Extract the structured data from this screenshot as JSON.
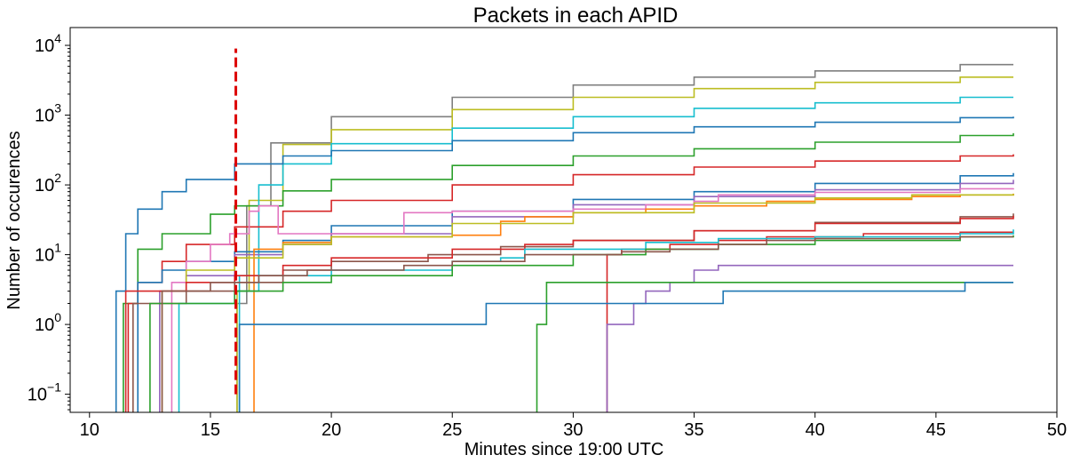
{
  "chart_data": {
    "type": "line",
    "title": "Packets in each APID",
    "xlabel": "Minutes since 19:00 UTC",
    "ylabel": "Number of occurences",
    "xlim": [
      9.2,
      50
    ],
    "ylim": [
      0.055,
      18000
    ],
    "yscale": "log",
    "grid": false,
    "legend": "none",
    "x_ticks": [
      10,
      15,
      20,
      25,
      30,
      35,
      40,
      45,
      50
    ],
    "x_tick_labels": [
      "10",
      "15",
      "20",
      "25",
      "30",
      "35",
      "40",
      "45",
      "50"
    ],
    "y_ticks": [
      {
        "value": 0.1,
        "base": "10",
        "exp": "−1"
      },
      {
        "value": 1,
        "base": "10",
        "exp": "0"
      },
      {
        "value": 10,
        "base": "10",
        "exp": "1"
      },
      {
        "value": 100,
        "base": "10",
        "exp": "2"
      },
      {
        "value": 1000,
        "base": "10",
        "exp": "3"
      },
      {
        "value": 10000,
        "base": "10",
        "exp": "4"
      }
    ],
    "vline": {
      "x": 16.05,
      "y": [
        0.1,
        9000
      ],
      "color": "#dd0000",
      "style": "dashed"
    },
    "series": [
      {
        "color": "#7f7f7f",
        "points": [
          [
            16.0,
            0.01
          ],
          [
            16.1,
            2
          ],
          [
            16.5,
            50
          ],
          [
            17.5,
            400
          ],
          [
            20,
            950
          ],
          [
            25,
            1800
          ],
          [
            30,
            2700
          ],
          [
            35,
            3500
          ],
          [
            40,
            4300
          ],
          [
            46,
            5300
          ],
          [
            48.2,
            5300
          ]
        ]
      },
      {
        "color": "#bcbd22",
        "points": [
          [
            16.0,
            0.01
          ],
          [
            16.1,
            3
          ],
          [
            16.6,
            60
          ],
          [
            18,
            380
          ],
          [
            20,
            620
          ],
          [
            25,
            1200
          ],
          [
            30,
            1800
          ],
          [
            35,
            2400
          ],
          [
            40,
            2950
          ],
          [
            46,
            3500
          ],
          [
            48.2,
            3500
          ]
        ]
      },
      {
        "color": "#17becf",
        "points": [
          [
            16.0,
            0.01
          ],
          [
            16.2,
            5
          ],
          [
            17,
            100
          ],
          [
            18,
            200
          ],
          [
            20,
            390
          ],
          [
            25,
            650
          ],
          [
            30,
            950
          ],
          [
            35,
            1250
          ],
          [
            40,
            1500
          ],
          [
            46,
            1800
          ],
          [
            48.2,
            1800
          ]
        ]
      },
      {
        "color": "#1f77b4",
        "points": [
          [
            11.0,
            0.01
          ],
          [
            11.1,
            3
          ],
          [
            11.5,
            20
          ],
          [
            12,
            45
          ],
          [
            13,
            80
          ],
          [
            14,
            120
          ],
          [
            16,
            200
          ],
          [
            18,
            260
          ],
          [
            20,
            310
          ],
          [
            25,
            430
          ],
          [
            30,
            560
          ],
          [
            35,
            680
          ],
          [
            40,
            790
          ],
          [
            46,
            920
          ],
          [
            48.2,
            950
          ]
        ]
      },
      {
        "color": "#2ca02c",
        "points": [
          [
            11.2,
            0.01
          ],
          [
            11.4,
            2
          ],
          [
            12,
            12
          ],
          [
            13,
            20
          ],
          [
            15,
            38
          ],
          [
            16,
            50
          ],
          [
            18,
            82
          ],
          [
            20,
            120
          ],
          [
            25,
            190
          ],
          [
            30,
            260
          ],
          [
            35,
            330
          ],
          [
            40,
            410
          ],
          [
            46,
            510
          ],
          [
            48.2,
            550
          ]
        ]
      },
      {
        "color": "#d62728",
        "points": [
          [
            11.4,
            0.01
          ],
          [
            11.6,
            2
          ],
          [
            12,
            4
          ],
          [
            13,
            8
          ],
          [
            14,
            14
          ],
          [
            16,
            25
          ],
          [
            18,
            42
          ],
          [
            20,
            60
          ],
          [
            25,
            100
          ],
          [
            30,
            140
          ],
          [
            35,
            180
          ],
          [
            40,
            220
          ],
          [
            46,
            260
          ],
          [
            48.2,
            275
          ]
        ]
      },
      {
        "color": "#1f77b4",
        "points": [
          [
            11.8,
            0.01
          ],
          [
            12,
            4
          ],
          [
            13,
            6
          ],
          [
            14,
            8
          ],
          [
            16,
            11
          ],
          [
            18,
            16
          ],
          [
            20,
            26
          ],
          [
            25,
            42
          ],
          [
            30,
            62
          ],
          [
            35,
            80
          ],
          [
            40,
            105
          ],
          [
            46,
            135
          ],
          [
            48.2,
            148
          ]
        ]
      },
      {
        "color": "#9467bd",
        "points": [
          [
            12.6,
            0.01
          ],
          [
            12.9,
            3
          ],
          [
            14,
            5
          ],
          [
            16,
            10
          ],
          [
            18,
            14
          ],
          [
            20,
            20
          ],
          [
            25,
            35
          ],
          [
            30,
            52
          ],
          [
            35,
            68
          ],
          [
            40,
            85
          ],
          [
            46,
            105
          ],
          [
            48.2,
            118
          ]
        ]
      },
      {
        "color": "#e377c2",
        "points": [
          [
            13.2,
            0.01
          ],
          [
            13.4,
            4
          ],
          [
            14,
            8
          ],
          [
            15,
            14
          ],
          [
            15.8,
            20
          ],
          [
            16.3,
            20
          ],
          [
            16.6,
            42
          ],
          [
            17,
            50
          ],
          [
            17.8,
            20
          ],
          [
            20,
            20
          ],
          [
            22,
            20
          ],
          [
            23,
            40
          ],
          [
            25,
            42
          ],
          [
            27,
            42
          ],
          [
            30,
            45
          ],
          [
            33,
            52
          ],
          [
            34,
            52
          ],
          [
            35,
            58
          ],
          [
            36,
            72
          ],
          [
            40,
            78
          ],
          [
            46,
            88
          ],
          [
            48.2,
            90
          ]
        ]
      },
      {
        "color": "#ff7f0e",
        "points": [
          [
            16.7,
            0.01
          ],
          [
            16.8,
            12
          ],
          [
            18,
            15
          ],
          [
            20,
            18
          ],
          [
            22,
            18
          ],
          [
            25,
            19
          ],
          [
            26,
            19
          ],
          [
            27,
            30
          ],
          [
            28,
            35
          ],
          [
            30,
            40
          ],
          [
            33,
            45
          ],
          [
            35,
            50
          ],
          [
            38,
            58
          ],
          [
            40,
            62
          ],
          [
            44,
            68
          ],
          [
            46,
            72
          ],
          [
            48.2,
            75
          ]
        ]
      },
      {
        "color": "#bcbd22",
        "points": [
          [
            12.8,
            0.01
          ],
          [
            13,
            3
          ],
          [
            14,
            6
          ],
          [
            16,
            9
          ],
          [
            18,
            14
          ],
          [
            20,
            18
          ],
          [
            25,
            28
          ],
          [
            30,
            40
          ],
          [
            35,
            55
          ],
          [
            40,
            65
          ],
          [
            44,
            72
          ],
          [
            48.2,
            74
          ]
        ]
      },
      {
        "color": "#8c564b",
        "points": [
          [
            11.6,
            0.01
          ],
          [
            11.8,
            2
          ],
          [
            14,
            3
          ],
          [
            16,
            4
          ],
          [
            18,
            6
          ],
          [
            20,
            8
          ],
          [
            24,
            10
          ],
          [
            27,
            13
          ],
          [
            30,
            16
          ],
          [
            35,
            22
          ],
          [
            40,
            29
          ],
          [
            46,
            35
          ],
          [
            48.2,
            39
          ]
        ]
      },
      {
        "color": "#d62728",
        "points": [
          [
            11.3,
            0.01
          ],
          [
            11.5,
            3
          ],
          [
            14,
            4
          ],
          [
            16,
            5
          ],
          [
            18,
            7
          ],
          [
            20,
            9
          ],
          [
            25,
            12
          ],
          [
            28,
            14
          ],
          [
            30,
            16
          ],
          [
            35,
            22
          ],
          [
            40,
            28
          ],
          [
            46,
            33
          ],
          [
            48.2,
            36
          ]
        ]
      },
      {
        "color": "#d62728",
        "points": [
          [
            31.3,
            0.01
          ],
          [
            31.4,
            10
          ],
          [
            32,
            12
          ],
          [
            34,
            14
          ],
          [
            36,
            16
          ],
          [
            38,
            18
          ],
          [
            42,
            20
          ],
          [
            46,
            21
          ],
          [
            48.2,
            21
          ]
        ]
      },
      {
        "color": "#17becf",
        "points": [
          [
            13.5,
            0.01
          ],
          [
            13.7,
            2
          ],
          [
            16,
            3
          ],
          [
            17,
            5
          ],
          [
            20,
            6
          ],
          [
            24,
            6
          ],
          [
            25,
            8
          ],
          [
            27,
            9
          ],
          [
            28,
            12
          ],
          [
            30,
            12
          ],
          [
            33,
            15
          ],
          [
            36,
            17
          ],
          [
            40,
            18
          ],
          [
            46,
            20
          ],
          [
            48.2,
            23
          ]
        ]
      },
      {
        "color": "#2ca02c",
        "points": [
          [
            12.3,
            0.01
          ],
          [
            12.5,
            2
          ],
          [
            16,
            3
          ],
          [
            18,
            4
          ],
          [
            20,
            5
          ],
          [
            25,
            7
          ],
          [
            30,
            10
          ],
          [
            33,
            12
          ],
          [
            36,
            14
          ],
          [
            40,
            16
          ],
          [
            46,
            18
          ],
          [
            48.2,
            19
          ]
        ]
      },
      {
        "color": "#8c564b",
        "points": [
          [
            12.9,
            0.01
          ],
          [
            13,
            3
          ],
          [
            15,
            4
          ],
          [
            17,
            5
          ],
          [
            19,
            6
          ],
          [
            22,
            6
          ],
          [
            23,
            7
          ],
          [
            25,
            8
          ],
          [
            28,
            10
          ],
          [
            30,
            10
          ],
          [
            32,
            11
          ],
          [
            34,
            12
          ],
          [
            36,
            14
          ],
          [
            38,
            16
          ],
          [
            40,
            17
          ],
          [
            46,
            18
          ],
          [
            48.2,
            18
          ]
        ]
      },
      {
        "color": "#9467bd",
        "points": [
          [
            31.3,
            0.01
          ],
          [
            31.4,
            1
          ],
          [
            32.5,
            2
          ],
          [
            33,
            3
          ],
          [
            34,
            4
          ],
          [
            35,
            6
          ],
          [
            36,
            7
          ],
          [
            48.2,
            7
          ]
        ]
      },
      {
        "color": "#2ca02c",
        "points": [
          [
            28.4,
            0.01
          ],
          [
            28.5,
            1
          ],
          [
            28.8,
            1
          ],
          [
            28.9,
            4
          ],
          [
            48.2,
            4
          ]
        ]
      },
      {
        "color": "#1f77b4",
        "points": [
          [
            16.1,
            0.01
          ],
          [
            16.2,
            1
          ],
          [
            26.3,
            1
          ],
          [
            26.4,
            2
          ],
          [
            36.1,
            2
          ],
          [
            36.2,
            3
          ],
          [
            46.1,
            3
          ],
          [
            46.2,
            4
          ],
          [
            48.2,
            4
          ]
        ]
      }
    ]
  }
}
